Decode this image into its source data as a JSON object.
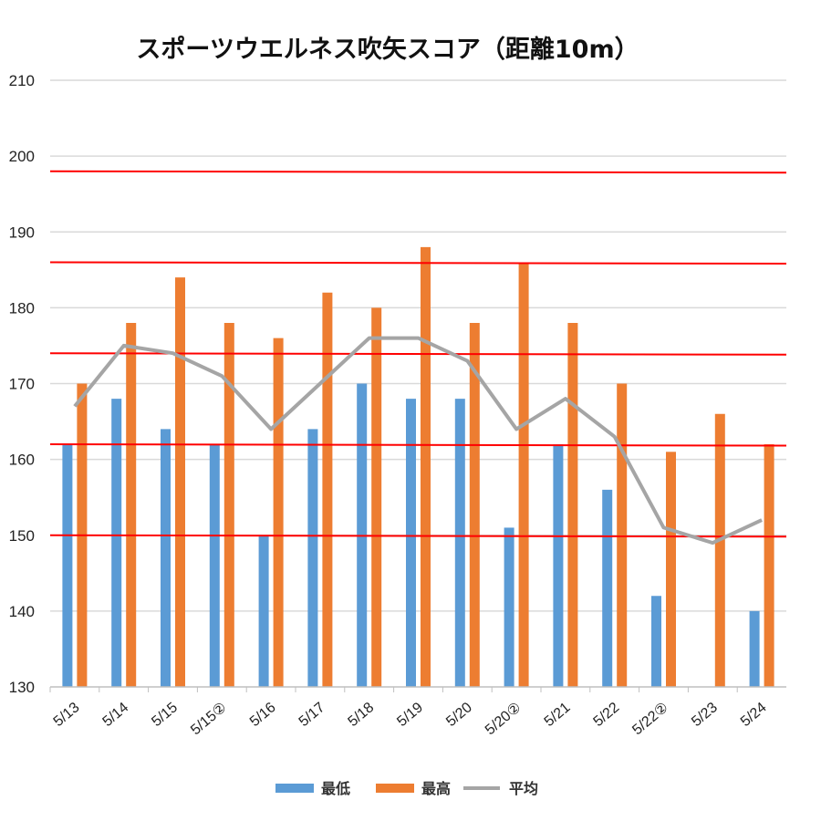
{
  "chart_data": {
    "type": "bar",
    "title": "スポーツウエルネス吹矢スコア（距離10m）",
    "categories": [
      "5/13",
      "5/14",
      "5/15",
      "5/15②",
      "5/16",
      "5/17",
      "5/18",
      "5/19",
      "5/20",
      "5/20②",
      "5/21",
      "5/22",
      "5/22②",
      "5/23",
      "5/24"
    ],
    "series": [
      {
        "name": "最低",
        "type": "bar",
        "color": "#5b9bd5",
        "values": [
          162,
          168,
          164,
          162,
          150,
          164,
          170,
          168,
          168,
          151,
          162,
          156,
          142,
          null,
          140
        ]
      },
      {
        "name": "最高",
        "type": "bar",
        "color": "#ed7d31",
        "values": [
          170,
          178,
          184,
          178,
          176,
          182,
          180,
          188,
          178,
          186,
          178,
          170,
          161,
          166,
          162
        ]
      },
      {
        "name": "平均",
        "type": "line",
        "color": "#a5a5a5",
        "values": [
          167,
          175,
          174,
          171,
          164,
          170,
          176,
          176,
          173,
          164,
          168,
          163,
          151,
          149,
          152
        ]
      }
    ],
    "ylim": [
      130,
      210
    ],
    "yticks": [
      "130",
      "140",
      "150",
      "160",
      "170",
      "180",
      "190",
      "200",
      "210"
    ],
    "reference_lines": {
      "color": "#ff0000",
      "values": [
        150,
        162,
        174,
        186,
        198
      ]
    },
    "grid": true,
    "legend_position": "bottom"
  }
}
